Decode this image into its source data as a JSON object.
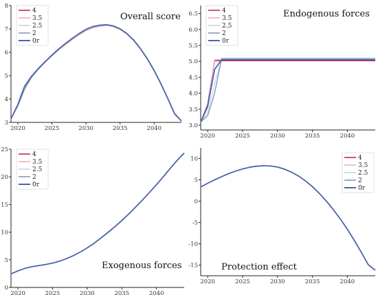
{
  "colors": {
    "s4": "#c2185b",
    "s35": "#f4a3b5",
    "s25": "#bcd6ec",
    "s2": "#7e93b5",
    "s0r": "#4a67a8",
    "axis": "#222222",
    "tick_text": "#333333"
  },
  "chart_data": [
    {
      "type": "line",
      "title": "Overall score",
      "xlabel": "",
      "ylabel": "",
      "xlim": [
        2019,
        2044
      ],
      "ylim": [
        3,
        8
      ],
      "xticks": [
        2020,
        2025,
        2030,
        2035,
        2040
      ],
      "xtick_labels": [
        "2020",
        "2025",
        "2030",
        "2035",
        "2040"
      ],
      "yticks": [
        3,
        4,
        5,
        6,
        7,
        8
      ],
      "ytick_labels": [
        "3",
        "4",
        "5",
        "6",
        "7",
        "8"
      ],
      "grid": false,
      "legend": "top-left",
      "x": [
        2019,
        2020,
        2021,
        2022,
        2023,
        2024,
        2025,
        2026,
        2027,
        2028,
        2029,
        2030,
        2031,
        2032,
        2033,
        2034,
        2035,
        2036,
        2037,
        2038,
        2039,
        2040,
        2041,
        2042,
        2043,
        2044
      ],
      "series": [
        {
          "name": "4",
          "values": [
            3.15,
            3.75,
            4.5,
            4.95,
            5.28,
            5.58,
            5.85,
            6.1,
            6.33,
            6.55,
            6.75,
            6.93,
            7.05,
            7.12,
            7.15,
            7.1,
            6.98,
            6.78,
            6.5,
            6.13,
            5.7,
            5.2,
            4.63,
            4.0,
            3.35,
            3.05
          ]
        },
        {
          "name": "3.5",
          "values": [
            3.15,
            3.74,
            4.48,
            4.94,
            5.27,
            5.57,
            5.84,
            6.1,
            6.33,
            6.55,
            6.75,
            6.93,
            7.06,
            7.13,
            7.15,
            7.1,
            6.98,
            6.78,
            6.5,
            6.13,
            5.7,
            5.2,
            4.63,
            4.0,
            3.35,
            3.05
          ]
        },
        {
          "name": "2.5",
          "values": [
            3.15,
            3.72,
            4.45,
            4.93,
            5.27,
            5.57,
            5.85,
            6.11,
            6.35,
            6.57,
            6.77,
            6.95,
            7.08,
            7.14,
            7.16,
            7.11,
            6.99,
            6.79,
            6.51,
            6.14,
            5.71,
            5.21,
            4.64,
            4.01,
            3.36,
            3.05
          ]
        },
        {
          "name": "2",
          "values": [
            3.15,
            3.7,
            4.42,
            4.92,
            5.27,
            5.58,
            5.86,
            6.13,
            6.37,
            6.59,
            6.79,
            6.97,
            7.09,
            7.15,
            7.17,
            7.12,
            7.0,
            6.8,
            6.52,
            6.15,
            5.72,
            5.22,
            4.65,
            4.02,
            3.37,
            3.06
          ]
        },
        {
          "name": "0r",
          "values": [
            3.15,
            3.76,
            4.55,
            4.97,
            5.3,
            5.6,
            5.88,
            6.14,
            6.38,
            6.6,
            6.8,
            6.98,
            7.1,
            7.16,
            7.18,
            7.13,
            7.0,
            6.8,
            6.52,
            6.15,
            5.72,
            5.22,
            4.65,
            4.02,
            3.37,
            3.06
          ]
        }
      ]
    },
    {
      "type": "line",
      "title": "Endogenous forces",
      "xlabel": "",
      "ylabel": "",
      "xlim": [
        2019,
        2044
      ],
      "ylim": [
        2.85,
        6.75
      ],
      "xticks": [
        2020,
        2025,
        2030,
        2035,
        2040
      ],
      "xtick_labels": [
        "2020",
        "2025",
        "2030",
        "2035",
        "2040"
      ],
      "yticks": [
        3.0,
        3.5,
        4.0,
        4.5,
        5.0,
        5.5,
        6.0,
        6.5
      ],
      "ytick_labels": [
        "3.0",
        "3.5",
        "4.0",
        "4.5",
        "5.0",
        "5.5",
        "6.0",
        "6.5"
      ],
      "grid": false,
      "legend": "top-left",
      "x": [
        2019,
        2020,
        2021,
        2022,
        2023,
        2024,
        2025,
        2026,
        2027,
        2028,
        2029,
        2030,
        2031,
        2032,
        2033,
        2034,
        2035,
        2036,
        2037,
        2038,
        2039,
        2040,
        2041,
        2042,
        2043,
        2044
      ],
      "series": [
        {
          "name": "4",
          "values": [
            3.1,
            3.65,
            5.02,
            5.02,
            5.02,
            5.02,
            5.02,
            5.02,
            5.02,
            5.02,
            5.02,
            5.02,
            5.02,
            5.02,
            5.02,
            5.02,
            5.02,
            5.02,
            5.02,
            5.02,
            5.02,
            5.02,
            5.02,
            5.02,
            5.02,
            5.02
          ]
        },
        {
          "name": "3.5",
          "values": [
            3.1,
            3.55,
            5.05,
            5.05,
            5.05,
            5.05,
            5.05,
            5.05,
            5.05,
            5.05,
            5.05,
            5.05,
            5.05,
            5.05,
            5.05,
            5.05,
            5.05,
            5.05,
            5.05,
            5.05,
            5.05,
            5.05,
            5.05,
            5.05,
            5.05,
            5.05
          ]
        },
        {
          "name": "2.5",
          "values": [
            3.1,
            3.4,
            4.3,
            5.08,
            5.08,
            5.08,
            5.08,
            5.08,
            5.08,
            5.08,
            5.08,
            5.08,
            5.08,
            5.08,
            5.08,
            5.08,
            5.08,
            5.08,
            5.08,
            5.08,
            5.08,
            5.08,
            5.08,
            5.08,
            5.08,
            5.08
          ]
        },
        {
          "name": "2",
          "values": [
            3.1,
            3.3,
            4.0,
            5.09,
            5.09,
            5.09,
            5.09,
            5.09,
            5.09,
            5.09,
            5.09,
            5.09,
            5.09,
            5.09,
            5.09,
            5.09,
            5.09,
            5.09,
            5.09,
            5.09,
            5.09,
            5.09,
            5.09,
            5.09,
            5.09,
            5.09
          ]
        },
        {
          "name": "0r",
          "values": [
            3.1,
            3.6,
            4.75,
            5.05,
            5.05,
            5.05,
            5.05,
            5.05,
            5.05,
            5.05,
            5.05,
            5.05,
            5.05,
            5.05,
            5.05,
            5.05,
            5.05,
            5.05,
            5.05,
            5.05,
            5.05,
            5.05,
            5.05,
            5.05,
            5.05,
            5.05
          ]
        }
      ]
    },
    {
      "type": "line",
      "title": "Exogenous forces",
      "xlabel": "",
      "ylabel": "",
      "xlim": [
        2019,
        2044
      ],
      "ylim": [
        0,
        25
      ],
      "xticks": [
        2020,
        2025,
        2030,
        2035,
        2040
      ],
      "xtick_labels": [
        "2020",
        "2025",
        "2030",
        "2035",
        "2040"
      ],
      "yticks": [
        0,
        5,
        10,
        15,
        20,
        25
      ],
      "ytick_labels": [
        "0",
        "5",
        "10",
        "15",
        "20",
        "25"
      ],
      "grid": false,
      "legend": "top-left",
      "x": [
        2019,
        2020,
        2021,
        2022,
        2023,
        2024,
        2025,
        2026,
        2027,
        2028,
        2029,
        2030,
        2031,
        2032,
        2033,
        2034,
        2035,
        2036,
        2037,
        2038,
        2039,
        2040,
        2041,
        2042,
        2043,
        2044
      ],
      "series": [
        {
          "name": "4",
          "values": [
            2.45,
            3.0,
            3.45,
            3.75,
            3.95,
            4.15,
            4.4,
            4.75,
            5.2,
            5.75,
            6.4,
            7.15,
            8.0,
            8.95,
            9.95,
            11.0,
            12.1,
            13.3,
            14.55,
            15.85,
            17.2,
            18.6,
            20.05,
            21.55,
            23.0,
            24.3
          ]
        },
        {
          "name": "3.5",
          "values": [
            2.45,
            3.0,
            3.45,
            3.75,
            3.95,
            4.15,
            4.4,
            4.75,
            5.2,
            5.75,
            6.4,
            7.15,
            8.0,
            8.95,
            9.95,
            11.0,
            12.1,
            13.3,
            14.55,
            15.85,
            17.2,
            18.6,
            20.05,
            21.55,
            23.0,
            24.3
          ]
        },
        {
          "name": "2.5",
          "values": [
            2.45,
            3.0,
            3.45,
            3.75,
            3.95,
            4.15,
            4.4,
            4.75,
            5.2,
            5.75,
            6.4,
            7.15,
            8.0,
            8.95,
            9.95,
            11.0,
            12.1,
            13.3,
            14.55,
            15.85,
            17.2,
            18.6,
            20.05,
            21.55,
            23.0,
            24.3
          ]
        },
        {
          "name": "2",
          "values": [
            2.45,
            3.0,
            3.45,
            3.75,
            3.95,
            4.15,
            4.4,
            4.75,
            5.2,
            5.75,
            6.4,
            7.15,
            8.0,
            8.95,
            9.95,
            11.0,
            12.1,
            13.3,
            14.55,
            15.85,
            17.2,
            18.6,
            20.05,
            21.55,
            23.0,
            24.3
          ]
        },
        {
          "name": "0r",
          "values": [
            2.45,
            3.0,
            3.45,
            3.75,
            3.95,
            4.15,
            4.4,
            4.75,
            5.2,
            5.75,
            6.4,
            7.15,
            8.0,
            8.95,
            9.95,
            11.0,
            12.1,
            13.3,
            14.55,
            15.85,
            17.2,
            18.6,
            20.05,
            21.55,
            23.0,
            24.3
          ]
        }
      ]
    },
    {
      "type": "line",
      "title": "Protection effect",
      "xlabel": "",
      "ylabel": "",
      "xlim": [
        2019,
        2044
      ],
      "ylim": [
        -17.5,
        12.5
      ],
      "xticks": [
        2020,
        2025,
        2030,
        2035,
        2040
      ],
      "xtick_labels": [
        "2020",
        "2025",
        "2030",
        "2035",
        "2040"
      ],
      "yticks": [
        -15,
        -10,
        -5,
        0,
        5,
        10
      ],
      "ytick_labels": [
        "-15",
        "-10",
        "-5",
        "0",
        "5",
        "10"
      ],
      "grid": false,
      "legend": "top-right",
      "x": [
        2019,
        2020,
        2021,
        2022,
        2023,
        2024,
        2025,
        2026,
        2027,
        2028,
        2029,
        2030,
        2031,
        2032,
        2033,
        2034,
        2035,
        2036,
        2037,
        2038,
        2039,
        2040,
        2041,
        2042,
        2043,
        2044
      ],
      "series": [
        {
          "name": "4",
          "values": [
            3.3,
            4.2,
            5.0,
            5.75,
            6.45,
            7.05,
            7.55,
            7.95,
            8.2,
            8.3,
            8.25,
            8.0,
            7.5,
            6.8,
            5.9,
            4.75,
            3.4,
            1.8,
            0.0,
            -2.0,
            -4.2,
            -6.6,
            -9.2,
            -12.0,
            -14.9,
            -16.2
          ]
        },
        {
          "name": "3.5",
          "values": [
            3.3,
            4.2,
            5.0,
            5.75,
            6.45,
            7.05,
            7.55,
            7.95,
            8.2,
            8.3,
            8.25,
            8.0,
            7.5,
            6.8,
            5.9,
            4.75,
            3.4,
            1.8,
            0.0,
            -2.0,
            -4.2,
            -6.6,
            -9.2,
            -12.0,
            -14.9,
            -16.2
          ]
        },
        {
          "name": "2.5",
          "values": [
            3.3,
            4.2,
            5.0,
            5.75,
            6.45,
            7.05,
            7.55,
            7.95,
            8.2,
            8.3,
            8.25,
            8.0,
            7.5,
            6.8,
            5.9,
            4.75,
            3.4,
            1.8,
            0.0,
            -2.0,
            -4.2,
            -6.6,
            -9.2,
            -12.0,
            -14.9,
            -16.2
          ]
        },
        {
          "name": "2",
          "values": [
            3.3,
            4.2,
            5.0,
            5.75,
            6.45,
            7.05,
            7.55,
            7.95,
            8.2,
            8.3,
            8.25,
            8.0,
            7.5,
            6.8,
            5.9,
            4.75,
            3.4,
            1.8,
            0.0,
            -2.0,
            -4.2,
            -6.6,
            -9.2,
            -12.0,
            -14.9,
            -16.2
          ]
        },
        {
          "name": "0r",
          "values": [
            3.3,
            4.2,
            5.0,
            5.75,
            6.45,
            7.05,
            7.55,
            7.95,
            8.2,
            8.3,
            8.25,
            8.0,
            7.5,
            6.8,
            5.9,
            4.75,
            3.4,
            1.8,
            0.0,
            -2.0,
            -4.2,
            -6.6,
            -9.2,
            -12.0,
            -14.9,
            -16.2
          ]
        }
      ]
    }
  ]
}
